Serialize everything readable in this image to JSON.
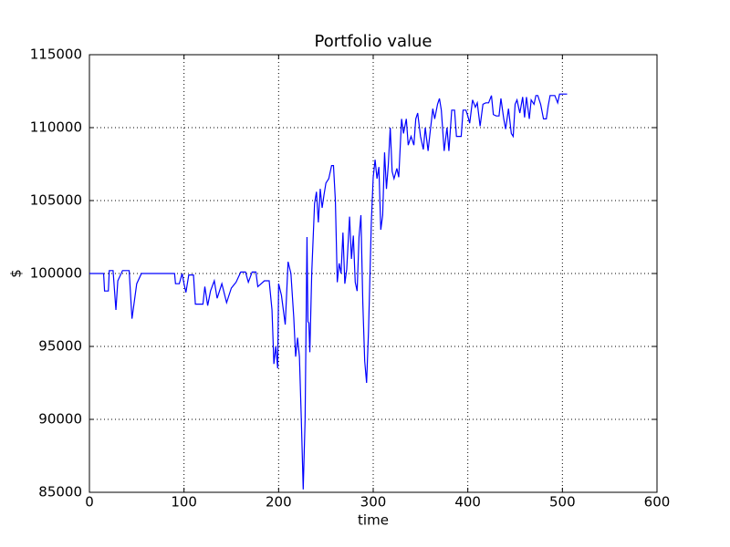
{
  "chart_data": {
    "type": "line",
    "title": "Portfolio value",
    "xlabel": "time",
    "ylabel": "$",
    "xlim": [
      0,
      600
    ],
    "xticks": [
      0,
      100,
      200,
      300,
      400,
      500,
      600
    ],
    "ylim": [
      85000,
      115000
    ],
    "yticks": [
      85000,
      90000,
      95000,
      100000,
      105000,
      110000,
      115000
    ],
    "grid": true,
    "x": [
      0,
      15,
      16,
      20,
      21,
      25,
      28,
      30,
      35,
      42,
      45,
      50,
      55,
      90,
      91,
      95,
      98,
      100,
      102,
      105,
      110,
      112,
      120,
      122,
      125,
      128,
      132,
      135,
      140,
      145,
      150,
      155,
      160,
      165,
      168,
      172,
      176,
      178,
      185,
      190,
      193,
      195,
      197,
      199,
      200,
      203,
      207,
      210,
      213,
      216,
      218,
      220,
      222,
      224,
      226,
      228,
      230,
      231,
      232,
      233,
      235,
      238,
      240,
      242,
      244,
      246,
      248,
      250,
      253,
      256,
      258,
      260,
      262,
      264,
      266,
      268,
      270,
      272,
      275,
      277,
      279,
      281,
      283,
      285,
      287,
      289,
      291,
      293,
      295,
      298,
      300,
      302,
      304,
      306,
      308,
      310,
      312,
      314,
      316,
      318,
      320,
      322,
      325,
      327,
      330,
      332,
      335,
      337,
      340,
      343,
      345,
      347,
      350,
      353,
      355,
      358,
      360,
      363,
      365,
      368,
      370,
      372,
      375,
      378,
      380,
      383,
      386,
      388,
      393,
      395,
      398,
      400,
      402,
      405,
      408,
      410,
      413,
      416,
      419,
      422,
      425,
      427,
      430,
      433,
      435,
      438,
      440,
      443,
      446,
      448,
      450,
      452,
      455,
      458,
      460,
      462,
      465,
      467,
      470,
      472,
      474,
      477,
      480,
      483,
      485,
      487,
      490,
      492,
      495,
      497,
      505
    ],
    "series": [
      {
        "name": "Portfolio value",
        "color": "#0000ff",
        "values": [
          100000,
          100000,
          98800,
          98800,
          100200,
          100200,
          97500,
          99500,
          100200,
          100200,
          96900,
          99300,
          100000,
          100000,
          99300,
          99300,
          100000,
          99300,
          98700,
          99900,
          99900,
          97900,
          97900,
          99100,
          97800,
          98800,
          99500,
          98300,
          99300,
          98000,
          99000,
          99400,
          100100,
          100100,
          99400,
          100100,
          100100,
          99100,
          99500,
          99500,
          97500,
          93800,
          95000,
          93500,
          99300,
          98500,
          96500,
          100800,
          100000,
          97000,
          94300,
          95600,
          94300,
          90000,
          85200,
          90000,
          102500,
          96700,
          96600,
          94600,
          100000,
          104800,
          105600,
          103500,
          105800,
          104500,
          105400,
          106200,
          106500,
          107400,
          107400,
          105000,
          99400,
          100700,
          100000,
          102800,
          99300,
          100300,
          103900,
          101000,
          102600,
          99400,
          98800,
          102500,
          104000,
          98000,
          94000,
          92500,
          96000,
          103500,
          106600,
          107800,
          106500,
          107300,
          103000,
          104000,
          108300,
          105800,
          107500,
          110000,
          107000,
          106500,
          107200,
          106600,
          110600,
          109600,
          110600,
          108800,
          109400,
          108800,
          110600,
          111000,
          109400,
          108500,
          110000,
          108400,
          109600,
          111300,
          110600,
          111600,
          112000,
          111200,
          108400,
          110000,
          108400,
          111200,
          111200,
          109400,
          109400,
          111200,
          111200,
          110800,
          110300,
          111900,
          111400,
          111700,
          110100,
          111600,
          111700,
          111700,
          112200,
          110900,
          110800,
          110800,
          112000,
          110600,
          109900,
          111300,
          109600,
          109400,
          111600,
          111900,
          111000,
          112100,
          110700,
          112100,
          110600,
          111900,
          111600,
          112200,
          112200,
          111600,
          110600,
          110600,
          111500,
          112200,
          112200,
          112200,
          111700,
          112300,
          112300
        ]
      }
    ]
  }
}
